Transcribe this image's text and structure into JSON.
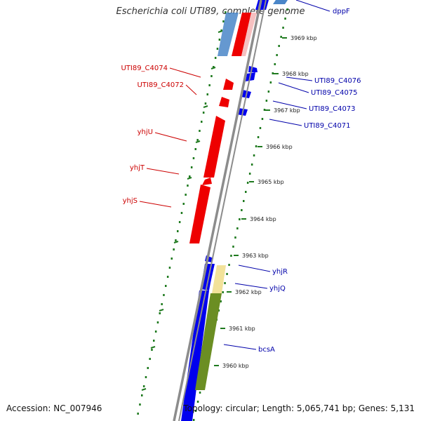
{
  "title": "Escherichia coli UTI89, complete genome",
  "footer": {
    "accession": "Accession: NC_007946",
    "topology": "Topology: circular; Length: 5,065,741 bp; Genes: 5,131"
  },
  "colors": {
    "forward_cds": "#0000ee",
    "reverse_cds": "#ee0000",
    "light_blue_feature": "#4a86c8",
    "olive_feature": "#6b8e23",
    "pale_yellow_feature": "#f2e29a",
    "ticks": "#1f7a1f",
    "backbone": "#8c8c8c",
    "left_label": "#cc0000",
    "right_label": "#0000aa"
  },
  "ticks": [
    {
      "kbp": 3969,
      "label": "3969 kbp"
    },
    {
      "kbp": 3968,
      "label": "3968 kbp"
    },
    {
      "kbp": 3967,
      "label": "3967 kbp"
    },
    {
      "kbp": 3966,
      "label": "3966 kbp"
    },
    {
      "kbp": 3965,
      "label": "3965 kbp"
    },
    {
      "kbp": 3964,
      "label": "3964 kbp"
    },
    {
      "kbp": 3963,
      "label": "3963 kbp"
    },
    {
      "kbp": 3962,
      "label": "3962 kbp"
    },
    {
      "kbp": 3961,
      "label": "3961 kbp"
    },
    {
      "kbp": 3960,
      "label": "3960 kbp"
    }
  ],
  "left_labels": [
    {
      "name": "UTI89_C4074"
    },
    {
      "name": "UTI89_C4072"
    },
    {
      "name": "yhjU"
    },
    {
      "name": "yhjT"
    },
    {
      "name": "yhjS"
    }
  ],
  "right_labels": [
    {
      "name": "dppF"
    },
    {
      "name": "UTI89_C4076"
    },
    {
      "name": "UTI89_C4075"
    },
    {
      "name": "UTI89_C4073"
    },
    {
      "name": "UTI89_C4071"
    },
    {
      "name": "yhjR"
    },
    {
      "name": "yhjQ"
    },
    {
      "name": "bcsA"
    }
  ]
}
